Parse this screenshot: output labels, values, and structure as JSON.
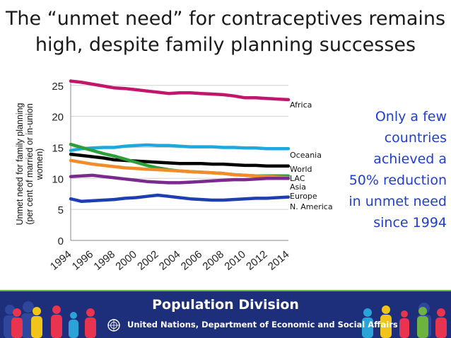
{
  "slide": {
    "title_lines": [
      "The “unmet need” for contraceptives remains",
      "high, despite family planning successes"
    ],
    "callout_lines": [
      "Only a few",
      "countries",
      "achieved a",
      "50% reduction",
      "in unmet need",
      "since 1994"
    ]
  },
  "footer": {
    "title": "Population Division",
    "subtitle": "United Nations, Department of Economic and Social Affairs",
    "colors": {
      "banner": "#1d2f7a",
      "stripe": "#6db33f"
    }
  },
  "chart_data": {
    "type": "line",
    "title": "",
    "ylabel_lines": [
      "Unmet need for family planning",
      "(per cent of married or in-union",
      "women)"
    ],
    "xlabel": "",
    "x": [
      1994,
      1995,
      1996,
      1997,
      1998,
      1999,
      2000,
      2001,
      2002,
      2003,
      2004,
      2005,
      2006,
      2007,
      2008,
      2009,
      2010,
      2011,
      2012,
      2013,
      2014
    ],
    "xtick_labels": [
      "1994",
      "1996",
      "1998",
      "2000",
      "2002",
      "2004",
      "2006",
      "2008",
      "2010",
      "2012",
      "2014"
    ],
    "ylim": [
      0,
      26
    ],
    "yticks": [
      0,
      5,
      10,
      15,
      20,
      25
    ],
    "grid": "horizontal",
    "legend": "inline labels at line ends",
    "series": [
      {
        "name": "Africa",
        "color": "#c0166b",
        "values": [
          25.7,
          25.5,
          25.2,
          24.9,
          24.6,
          24.5,
          24.3,
          24.1,
          23.9,
          23.7,
          23.8,
          23.8,
          23.7,
          23.6,
          23.5,
          23.3,
          23.0,
          23.0,
          22.9,
          22.8,
          22.7
        ]
      },
      {
        "name": "Oceania",
        "color": "#1fa8dc",
        "values": [
          14.5,
          14.8,
          14.9,
          15.0,
          15.0,
          15.2,
          15.3,
          15.4,
          15.3,
          15.3,
          15.2,
          15.1,
          15.1,
          15.1,
          15.0,
          15.0,
          14.9,
          14.9,
          14.8,
          14.8,
          14.8
        ]
      },
      {
        "name": "World",
        "color": "#000000",
        "values": [
          13.9,
          13.7,
          13.5,
          13.3,
          13.0,
          12.9,
          12.8,
          12.7,
          12.6,
          12.5,
          12.4,
          12.4,
          12.4,
          12.3,
          12.3,
          12.2,
          12.1,
          12.1,
          12.0,
          12.0,
          12.0
        ]
      },
      {
        "name": "LAC",
        "color": "#2e9e3a",
        "values": [
          15.5,
          15.0,
          14.5,
          14.0,
          13.6,
          13.1,
          12.6,
          12.1,
          11.7,
          11.4,
          11.2,
          11.1,
          11.0,
          10.9,
          10.8,
          10.6,
          10.5,
          10.4,
          10.4,
          10.4,
          10.4
        ]
      },
      {
        "name": "Asia",
        "color": "#f28c28",
        "values": [
          12.9,
          12.6,
          12.3,
          12.1,
          11.9,
          11.7,
          11.6,
          11.5,
          11.4,
          11.3,
          11.2,
          11.1,
          11.0,
          10.9,
          10.8,
          10.6,
          10.5,
          10.4,
          10.3,
          10.2,
          10.1
        ]
      },
      {
        "name": "Europe",
        "color": "#7a2a8c",
        "values": [
          10.3,
          10.4,
          10.5,
          10.3,
          10.1,
          9.9,
          9.7,
          9.5,
          9.4,
          9.3,
          9.3,
          9.4,
          9.5,
          9.6,
          9.7,
          9.8,
          9.8,
          9.9,
          10.0,
          10.0,
          10.0
        ]
      },
      {
        "name": "N. America",
        "color": "#1f3fb0",
        "values": [
          6.7,
          6.3,
          6.4,
          6.5,
          6.6,
          6.8,
          6.9,
          7.1,
          7.3,
          7.1,
          6.9,
          6.7,
          6.6,
          6.5,
          6.5,
          6.6,
          6.7,
          6.8,
          6.8,
          6.9,
          7.0
        ]
      }
    ]
  }
}
